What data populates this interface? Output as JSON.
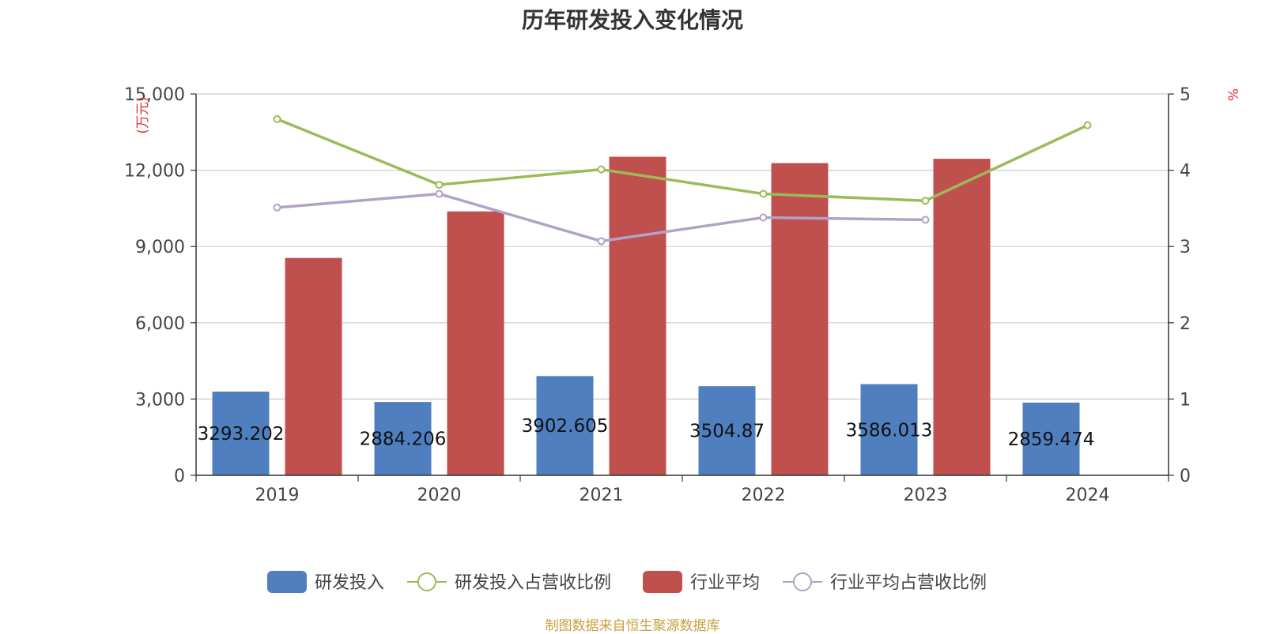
{
  "chart_data": {
    "type": "bar",
    "title": "历年研发投入变化情况",
    "categories": [
      "2019",
      "2020",
      "2021",
      "2022",
      "2023",
      "2024"
    ],
    "ylabel_left": "(万元)",
    "ylabel_right": "%",
    "ylim_left": [
      0,
      15000
    ],
    "yticks_left": [
      "0",
      "3,000",
      "6,000",
      "9,000",
      "12,000",
      "15,000"
    ],
    "ylim_right": [
      0,
      5
    ],
    "yticks_right": [
      "0",
      "1",
      "2",
      "3",
      "4",
      "5"
    ],
    "grid": true,
    "legend_position": "bottom",
    "series": [
      {
        "name": "研发投入",
        "type": "bar",
        "axis": "left",
        "color": "#4f7fbf",
        "values": [
          3293.202,
          2884.206,
          3902.605,
          3504.87,
          3586.013,
          2859.474
        ],
        "labels": [
          "3293.202",
          "2884.206",
          "3902.605",
          "3504.87",
          "3586.013",
          "2859.474"
        ]
      },
      {
        "name": "研发投入占营收比例",
        "type": "line",
        "axis": "right",
        "color": "#9bbb59",
        "values": [
          4.67,
          3.81,
          4.01,
          3.69,
          3.6,
          4.59
        ]
      },
      {
        "name": "行业平均",
        "type": "bar",
        "axis": "left",
        "color": "#c0504d",
        "values": [
          8550,
          10380,
          12530,
          12280,
          12450,
          null
        ]
      },
      {
        "name": "行业平均占营收比例",
        "type": "line",
        "axis": "right",
        "color": "#b3a2c7",
        "values": [
          3.51,
          3.69,
          3.07,
          3.38,
          3.35,
          null
        ]
      }
    ]
  },
  "source_note": "制图数据来自恒生聚源数据库"
}
